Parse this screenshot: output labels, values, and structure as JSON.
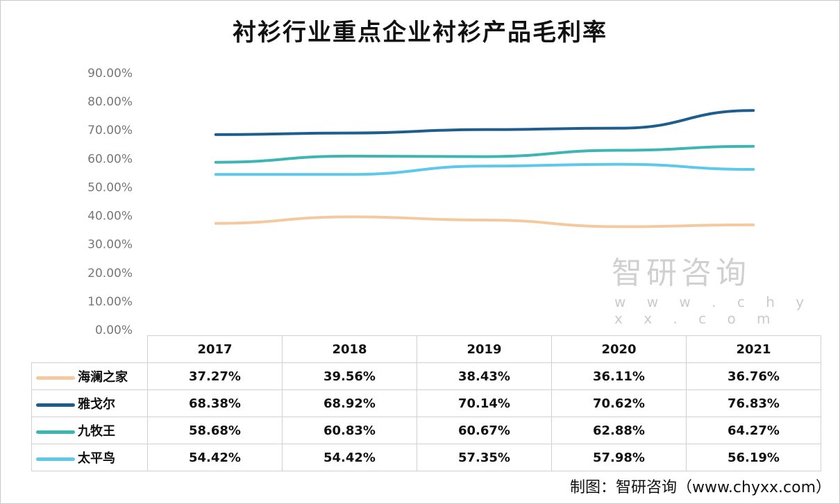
{
  "chart_data": {
    "type": "line",
    "title": "衬衫行业重点企业衬衫产品毛利率",
    "categories": [
      "2017",
      "2018",
      "2019",
      "2020",
      "2021"
    ],
    "ylim": [
      0,
      90
    ],
    "yticks": [
      "0.00%",
      "10.00%",
      "20.00%",
      "30.00%",
      "40.00%",
      "50.00%",
      "60.00%",
      "70.00%",
      "80.00%",
      "90.00%"
    ],
    "grid": false,
    "legend": "data-table",
    "series": [
      {
        "name": "海澜之家",
        "color": "#f5c9a0",
        "values": [
          37.27,
          39.56,
          38.43,
          36.11,
          36.76
        ],
        "labels": [
          "37.27%",
          "39.56%",
          "38.43%",
          "36.11%",
          "36.76%"
        ]
      },
      {
        "name": "雅戈尔",
        "color": "#1f5d8c",
        "values": [
          68.38,
          68.92,
          70.14,
          70.62,
          76.83
        ],
        "labels": [
          "68.38%",
          "68.92%",
          "70.14%",
          "70.62%",
          "76.83%"
        ]
      },
      {
        "name": "九牧王",
        "color": "#3db5b3",
        "values": [
          58.68,
          60.83,
          60.67,
          62.88,
          64.27
        ],
        "labels": [
          "58.68%",
          "60.83%",
          "60.67%",
          "62.88%",
          "64.27%"
        ]
      },
      {
        "name": "太平鸟",
        "color": "#5cc8ec",
        "values": [
          54.42,
          54.42,
          57.35,
          57.98,
          56.19
        ],
        "labels": [
          "54.42%",
          "54.42%",
          "57.35%",
          "57.98%",
          "56.19%"
        ]
      }
    ]
  },
  "watermark": {
    "text": "智研咨询",
    "url": "w w w . c h y x x . c o m"
  },
  "source": "制图：智研咨询（www.chyxx.com）"
}
